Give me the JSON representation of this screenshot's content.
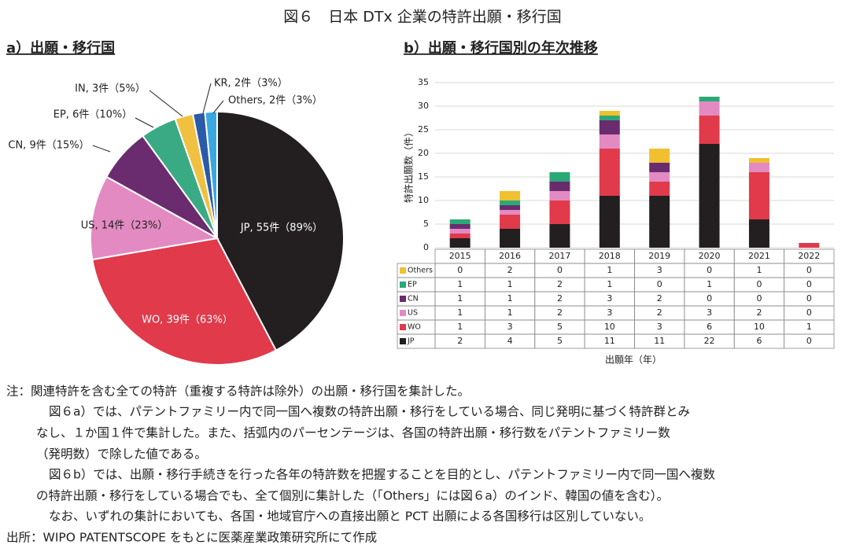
{
  "title": "図６　日本 DTx 企業の特許出願・移行国",
  "chart_data": [
    {
      "type": "pie",
      "title": "a）出願・移行国",
      "values": [
        55,
        39,
        14,
        9,
        6,
        3,
        2,
        2
      ],
      "value_labels": [
        "JP, 55件（89%）",
        "WO, 39件（63%）",
        "US, 14件（23%）",
        "CN, 9件（15%）",
        "EP, 6件（10%）",
        "IN, 3件（5%）",
        "KR, 2件（3%）",
        "Others, 2件（3%）"
      ],
      "colors": [
        "#231f20",
        "#e03a4b",
        "#e38ac2",
        "#6a2c6e",
        "#3aaa85",
        "#f0c040",
        "#2a5aa8",
        "#3aa8e0"
      ]
    },
    {
      "type": "stacked_bar",
      "title": "b）出願・移行国別の年次推移",
      "categories": [
        "2015",
        "2016",
        "2017",
        "2018",
        "2019",
        "2020",
        "2021",
        "2022"
      ],
      "series": [
        {
          "name": "JP",
          "color": "#231f20",
          "values": [
            2,
            4,
            5,
            11,
            11,
            22,
            6,
            0
          ]
        },
        {
          "name": "WO",
          "color": "#e03a4b",
          "values": [
            1,
            3,
            5,
            10,
            3,
            6,
            10,
            1
          ]
        },
        {
          "name": "US",
          "color": "#e38ac2",
          "values": [
            1,
            1,
            2,
            3,
            2,
            3,
            2,
            0
          ]
        },
        {
          "name": "CN",
          "color": "#6a2c6e",
          "values": [
            1,
            1,
            2,
            3,
            2,
            0,
            0,
            0
          ]
        },
        {
          "name": "EP",
          "color": "#2aa876",
          "values": [
            1,
            1,
            2,
            1,
            0,
            1,
            0,
            0
          ]
        },
        {
          "name": "Others",
          "color": "#f0c030",
          "values": [
            0,
            2,
            0,
            1,
            3,
            0,
            1,
            0
          ]
        }
      ],
      "ylim": [
        0,
        35
      ],
      "yticks": [
        0,
        5,
        10,
        15,
        20,
        25,
        30,
        35
      ],
      "y_label": "特許出願数（件）",
      "x_label": "出願年（年）"
    }
  ],
  "notes": [
    "注：関連特許を含む全ての特許（重複する特許は除外）の出願・移行国を集計した。",
    "図６a）では、パテントファミリー内で同一国へ複数の特許出願・移行をしている場合、同じ発明に基づく特許群とみ",
    "なし、１か国１件で集計した。また、括弧内のパーセンテージは、各国の特許出願・移行数をパテントファミリー数",
    "（発明数）で除した値である。",
    "図６b）では、出願・移行手続きを行った各年の特許数を把握することを目的とし、パテントファミリー内で同一国へ複数",
    "の特許出願・移行をしている場合でも、全て個別に集計した（「Others」には図６a）のインド、韓国の値を含む）。",
    "なお、いずれの集計においても、各国・地域官庁への直接出願と PCT 出願による各国移行は区別していない。",
    "出所：WIPO PATENTSCOPE をもとに医薬産業政策研究所にて作成"
  ]
}
